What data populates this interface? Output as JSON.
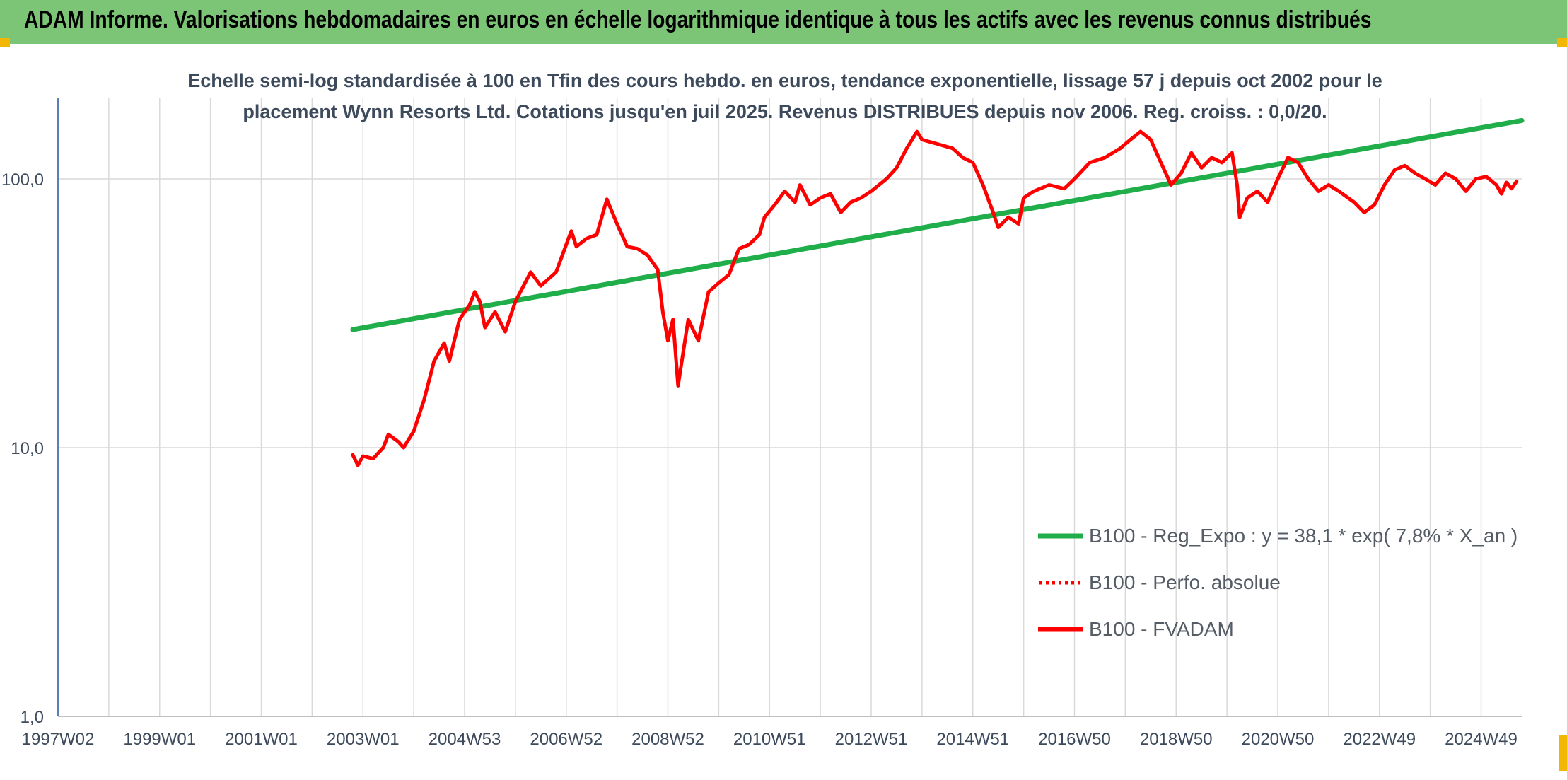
{
  "header": {
    "title": "ADAM Informe. Valorisations hebdomadaires en euros en échelle logarithmique identique à tous les actifs avec les revenus connus distribués"
  },
  "colors": {
    "header_bg": "#7cc576",
    "corner_accent": "#f2b705",
    "series_fvadam": "#ff0000",
    "series_regression": "#1fae4a",
    "axis_text": "#3c4a5c",
    "grid": "#d9d9d9"
  },
  "chart_data": {
    "type": "line",
    "title_lines": [
      "Echelle semi-log standardisée à 100 en Tfin des cours hebdo. en euros, tendance exponentielle, lissage 57 j depuis oct 2002 pour le",
      "placement Wynn Resorts Ltd. Cotations jusqu'en juil 2025. Revenus DISTRIBUES depuis nov 2006. Reg. croiss. : 0,0/20."
    ],
    "y_scale": "log",
    "ylim": [
      1,
      200
    ],
    "y_ticks": [
      {
        "value": 1,
        "label": "1,0"
      },
      {
        "value": 10,
        "label": "10,0"
      },
      {
        "value": 100,
        "label": "100,0"
      }
    ],
    "xlim": [
      1997.0,
      2025.8
    ],
    "x_ticks": [
      {
        "value": 1997.0,
        "label": "1997W02"
      },
      {
        "value": 1999.0,
        "label": "1999W01"
      },
      {
        "value": 2001.0,
        "label": "2001W01"
      },
      {
        "value": 2003.0,
        "label": "2003W01"
      },
      {
        "value": 2005.0,
        "label": "2004W53"
      },
      {
        "value": 2007.0,
        "label": "2006W52"
      },
      {
        "value": 2009.0,
        "label": "2008W52"
      },
      {
        "value": 2011.0,
        "label": "2010W51"
      },
      {
        "value": 2013.0,
        "label": "2012W51"
      },
      {
        "value": 2015.0,
        "label": "2014W51"
      },
      {
        "value": 2017.0,
        "label": "2016W50"
      },
      {
        "value": 2019.0,
        "label": "2018W50"
      },
      {
        "value": 2021.0,
        "label": "2020W50"
      },
      {
        "value": 2023.0,
        "label": "2022W49"
      },
      {
        "value": 2025.0,
        "label": "2024W49"
      }
    ],
    "grid": true,
    "legend_position": "bottom-right",
    "legend": [
      {
        "label": "B100 - Reg_Expo : y = 38,1 * exp( 7,8% *  X_an )",
        "style": "solid",
        "color": "#1fae4a"
      },
      {
        "label": "B100 - Perfo. absolue",
        "style": "dotted",
        "color": "#ff0000"
      },
      {
        "label": "B100 - FVADAM",
        "style": "solid",
        "color": "#ff0000"
      }
    ],
    "series": [
      {
        "name": "B100 - Reg_Expo : y = 38,1 * exp( 7,8% *  X_an )",
        "color": "#1fae4a",
        "points": [
          [
            2002.8,
            27.5
          ],
          [
            2025.8,
            165
          ]
        ]
      },
      {
        "name": "B100 - FVADAM",
        "color": "#ff0000",
        "points": [
          [
            2002.8,
            9.4
          ],
          [
            2002.9,
            8.6
          ],
          [
            2003.0,
            9.3
          ],
          [
            2003.2,
            9.1
          ],
          [
            2003.4,
            10.0
          ],
          [
            2003.5,
            11.2
          ],
          [
            2003.7,
            10.5
          ],
          [
            2003.8,
            10.0
          ],
          [
            2004.0,
            11.5
          ],
          [
            2004.2,
            15.0
          ],
          [
            2004.4,
            21.0
          ],
          [
            2004.6,
            24.5
          ],
          [
            2004.7,
            21.0
          ],
          [
            2004.9,
            30.0
          ],
          [
            2005.1,
            34.0
          ],
          [
            2005.2,
            38.0
          ],
          [
            2005.3,
            35.0
          ],
          [
            2005.4,
            28.0
          ],
          [
            2005.6,
            32.0
          ],
          [
            2005.8,
            27.0
          ],
          [
            2006.0,
            35.0
          ],
          [
            2006.3,
            45.0
          ],
          [
            2006.5,
            40.0
          ],
          [
            2006.8,
            45.0
          ],
          [
            2007.0,
            57.0
          ],
          [
            2007.1,
            64.0
          ],
          [
            2007.2,
            56.0
          ],
          [
            2007.4,
            60.0
          ],
          [
            2007.6,
            62.0
          ],
          [
            2007.8,
            84.0
          ],
          [
            2008.0,
            68.0
          ],
          [
            2008.2,
            56.0
          ],
          [
            2008.4,
            55.0
          ],
          [
            2008.6,
            52.0
          ],
          [
            2008.8,
            46.0
          ],
          [
            2008.9,
            32.0
          ],
          [
            2009.0,
            25.0
          ],
          [
            2009.1,
            30.0
          ],
          [
            2009.2,
            17.0
          ],
          [
            2009.4,
            30.0
          ],
          [
            2009.6,
            25.0
          ],
          [
            2009.8,
            38.0
          ],
          [
            2010.0,
            41.0
          ],
          [
            2010.2,
            44.0
          ],
          [
            2010.4,
            55.0
          ],
          [
            2010.6,
            57.0
          ],
          [
            2010.8,
            62.0
          ],
          [
            2010.9,
            72.0
          ],
          [
            2011.1,
            80.0
          ],
          [
            2011.3,
            90.0
          ],
          [
            2011.5,
            82.0
          ],
          [
            2011.6,
            95.0
          ],
          [
            2011.8,
            80.0
          ],
          [
            2012.0,
            85.0
          ],
          [
            2012.2,
            88.0
          ],
          [
            2012.4,
            75.0
          ],
          [
            2012.6,
            82.0
          ],
          [
            2012.8,
            85.0
          ],
          [
            2013.0,
            90.0
          ],
          [
            2013.3,
            100.0
          ],
          [
            2013.5,
            110.0
          ],
          [
            2013.7,
            130.0
          ],
          [
            2013.9,
            150.0
          ],
          [
            2014.0,
            140.0
          ],
          [
            2014.3,
            135.0
          ],
          [
            2014.6,
            130.0
          ],
          [
            2014.8,
            120.0
          ],
          [
            2015.0,
            115.0
          ],
          [
            2015.2,
            95.0
          ],
          [
            2015.4,
            75.0
          ],
          [
            2015.5,
            66.0
          ],
          [
            2015.7,
            72.0
          ],
          [
            2015.9,
            68.0
          ],
          [
            2016.0,
            85.0
          ],
          [
            2016.2,
            90.0
          ],
          [
            2016.5,
            95.0
          ],
          [
            2016.8,
            92.0
          ],
          [
            2017.0,
            100.0
          ],
          [
            2017.3,
            115.0
          ],
          [
            2017.6,
            120.0
          ],
          [
            2017.9,
            130.0
          ],
          [
            2018.1,
            140.0
          ],
          [
            2018.3,
            150.0
          ],
          [
            2018.5,
            140.0
          ],
          [
            2018.7,
            115.0
          ],
          [
            2018.9,
            95.0
          ],
          [
            2019.1,
            105.0
          ],
          [
            2019.3,
            125.0
          ],
          [
            2019.5,
            110.0
          ],
          [
            2019.7,
            120.0
          ],
          [
            2019.9,
            115.0
          ],
          [
            2020.1,
            125.0
          ],
          [
            2020.2,
            95.0
          ],
          [
            2020.25,
            72.0
          ],
          [
            2020.4,
            85.0
          ],
          [
            2020.6,
            90.0
          ],
          [
            2020.8,
            82.0
          ],
          [
            2021.0,
            100.0
          ],
          [
            2021.2,
            120.0
          ],
          [
            2021.4,
            115.0
          ],
          [
            2021.6,
            100.0
          ],
          [
            2021.8,
            90.0
          ],
          [
            2022.0,
            95.0
          ],
          [
            2022.2,
            90.0
          ],
          [
            2022.5,
            82.0
          ],
          [
            2022.7,
            75.0
          ],
          [
            2022.9,
            80.0
          ],
          [
            2023.1,
            95.0
          ],
          [
            2023.3,
            108.0
          ],
          [
            2023.5,
            112.0
          ],
          [
            2023.7,
            105.0
          ],
          [
            2023.9,
            100.0
          ],
          [
            2024.1,
            95.0
          ],
          [
            2024.3,
            105.0
          ],
          [
            2024.5,
            100.0
          ],
          [
            2024.7,
            90.0
          ],
          [
            2024.9,
            100.0
          ],
          [
            2025.1,
            102.0
          ],
          [
            2025.3,
            95.0
          ],
          [
            2025.4,
            88.0
          ],
          [
            2025.5,
            97.0
          ],
          [
            2025.6,
            92.0
          ],
          [
            2025.7,
            98.0
          ]
        ]
      }
    ]
  }
}
